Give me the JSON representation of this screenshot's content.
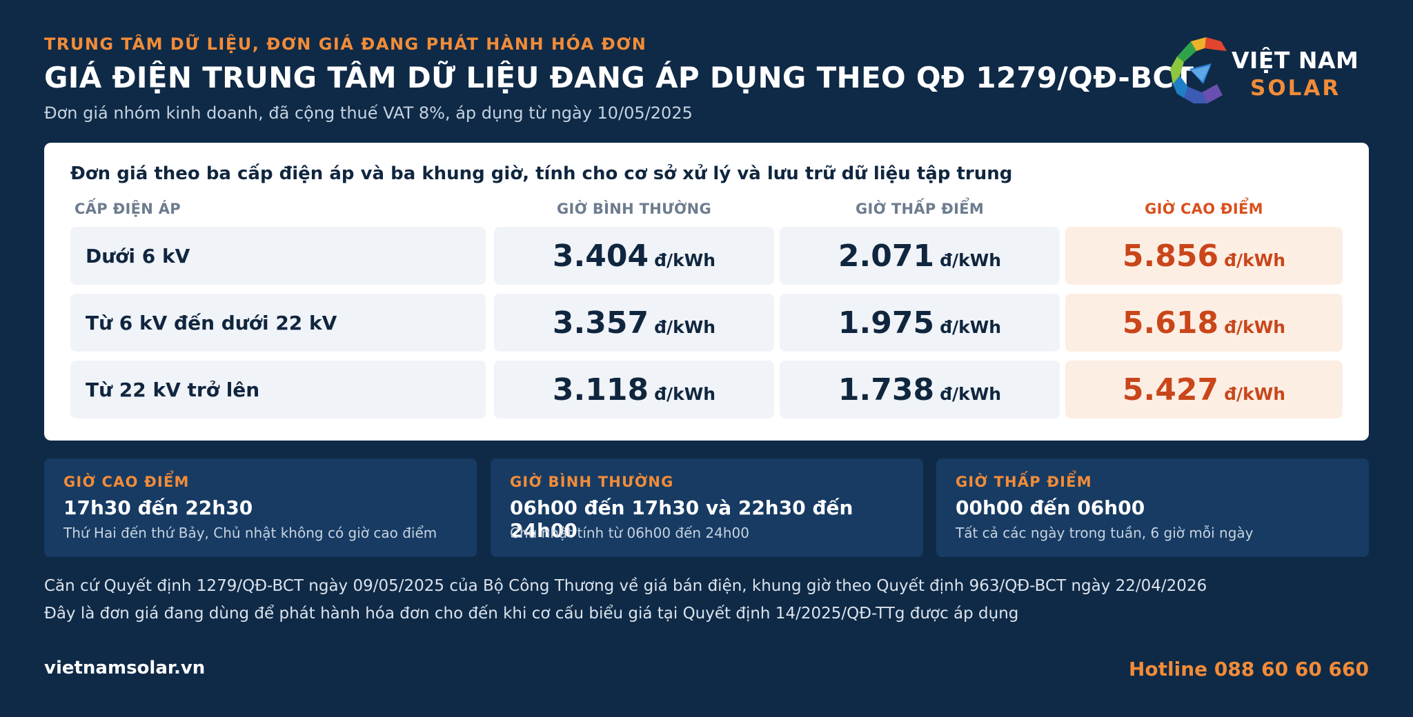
{
  "header": {
    "kicker": "TRUNG TÂM DỮ LIỆU, ĐƠN GIÁ ĐANG PHÁT HÀNH HÓA ĐƠN",
    "title": "GIÁ ĐIỆN TRUNG TÂM DỮ LIỆU ĐANG ÁP DỤNG THEO QĐ 1279/QĐ-BCT",
    "subtitle": "Đơn giá nhóm kinh doanh, đã cộng thuế VAT 8%, áp dụng từ ngày 10/05/2025"
  },
  "logo": {
    "line1": "VIỆT NAM",
    "line2": "SOLAR"
  },
  "table": {
    "title": "Đơn giá theo ba cấp điện áp và ba khung giờ, tính cho cơ sở xử lý và lưu trữ dữ liệu tập trung",
    "headers": [
      "CẤP ĐIỆN ÁP",
      "GIỜ BÌNH THƯỜNG",
      "GIỜ THẤP ĐIỂM",
      "GIỜ CAO ĐIỂM"
    ],
    "unit": "đ/kWh",
    "rows": [
      {
        "label": "Dưới 6 kV",
        "normal": "3.404",
        "offpeak": "2.071",
        "peak": "5.856"
      },
      {
        "label": "Từ 6 kV đến dưới 22 kV",
        "normal": "3.357",
        "offpeak": "1.975",
        "peak": "5.618"
      },
      {
        "label": "Từ 22 kV trở lên",
        "normal": "3.118",
        "offpeak": "1.738",
        "peak": "5.427"
      }
    ]
  },
  "boxes": [
    {
      "kicker": "GIỜ CAO ĐIỂM",
      "main": "17h30 đến 22h30",
      "note": "Thứ Hai đến thứ Bảy, Chủ nhật không có giờ cao điểm"
    },
    {
      "kicker": "GIỜ BÌNH THƯỜNG",
      "main": "06h00 đến 17h30 và 22h30 đến 24h00",
      "note": "Chủ nhật tính từ 06h00 đến 24h00"
    },
    {
      "kicker": "GIỜ THẤP ĐIỂM",
      "main": "00h00 đến 06h00",
      "note": "Tất cả các ngày trong tuần, 6 giờ mỗi ngày"
    }
  ],
  "footnotes": [
    "Căn cứ Quyết định 1279/QĐ-BCT ngày 09/05/2025 của Bộ Công Thương về giá bán điện, khung giờ theo Quyết định 963/QĐ-BCT ngày 22/04/2026",
    "Đây là đơn giá đang dùng để phát hành hóa đơn cho đến khi cơ cấu biểu giá tại Quyết định 14/2025/QĐ-TTg được áp dụng"
  ],
  "footer": {
    "site": "vietnamsolar.vn",
    "hotline": "Hotline 088 60 60 660"
  },
  "colors": {
    "background": "#0f2a47",
    "accent": "#f28c38",
    "peak": "#c9461a",
    "card": "#ffffff",
    "box": "#173b63"
  }
}
